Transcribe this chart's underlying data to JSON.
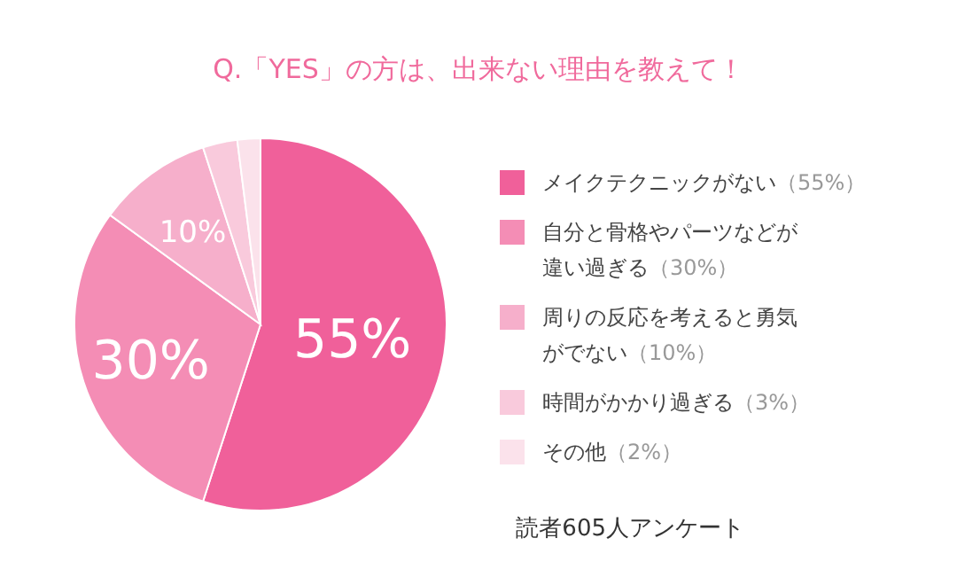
{
  "chart_data": {
    "type": "pie",
    "title": "Q.「YES」の方は、出来ない理由を教えて！",
    "categories": [
      "メイクテクニックがない（55%）",
      "自分と骨格やパーツなどが違い過ぎる（30%）",
      "周りの反応を考えると勇気がでない（10%）",
      "時間がかかり過ぎる（3%）",
      "その他（2%）"
    ],
    "values": [
      55,
      30,
      10,
      3,
      2
    ],
    "colors": [
      "#f0609a",
      "#f48db5",
      "#f6afcb",
      "#f9cadc",
      "#fbe2eb"
    ],
    "value_labels": [
      "55%",
      "30%",
      "10%",
      null,
      null
    ],
    "legend": "right",
    "annotations": [
      "読者605人アンケート"
    ]
  }
}
